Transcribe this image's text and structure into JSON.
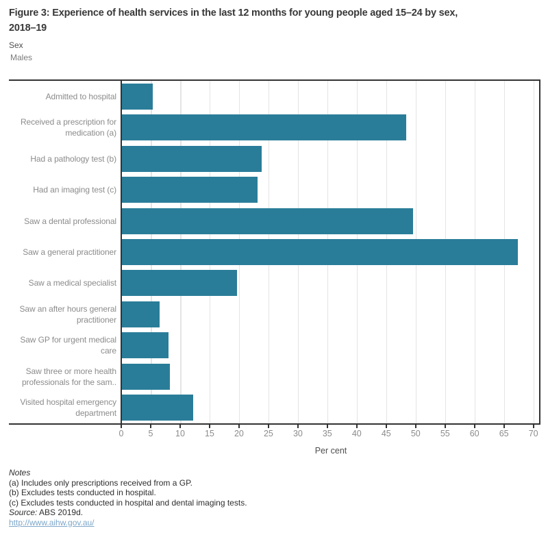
{
  "title": "Figure 3: Experience of health services in the last 12 months for young people aged 15–24 by sex,\n2018–19",
  "legend": {
    "title": "Sex",
    "value": "Males"
  },
  "chart_data": {
    "type": "bar",
    "orientation": "horizontal",
    "title": "Figure 3: Experience of health services in the last 12 months for young people aged 15–24 by sex, 2018–19",
    "categories": [
      "Admitted to hospital",
      "Received a prescription for\nmedication (a)",
      "Had a pathology test (b)",
      "Had an imaging test (c)",
      "Saw a dental professional",
      "Saw a general practitioner",
      "Saw a medical specialist",
      "Saw an after hours general\npractitioner",
      "Saw GP for urgent medical\ncare",
      "Saw three or more health\nprofessionals for the sam..",
      "Visited hospital emergency\ndepartment"
    ],
    "values": [
      5.3,
      48.4,
      23.9,
      23.1,
      49.5,
      67.4,
      19.6,
      6.5,
      8.0,
      8.2,
      12.2
    ],
    "xlabel": "Per cent",
    "x_ticks": [
      0,
      5,
      10,
      15,
      20,
      25,
      30,
      35,
      40,
      45,
      50,
      55,
      60,
      65,
      70
    ],
    "xlim": [
      0,
      71.2
    ],
    "grid": true,
    "bar_color": "#2a7d99",
    "legend_position": "top-left"
  },
  "notes": {
    "heading": "Notes",
    "lines": [
      "(a) Includes only prescriptions received from a GP.",
      "(b) Excludes tests conducted in hospital.",
      "(c) Excludes tests conducted in hospital and dental imaging tests."
    ],
    "source_label": "Source:",
    "source_text": "ABS 2019d.",
    "link": "http://www.aihw.gov.au/"
  }
}
